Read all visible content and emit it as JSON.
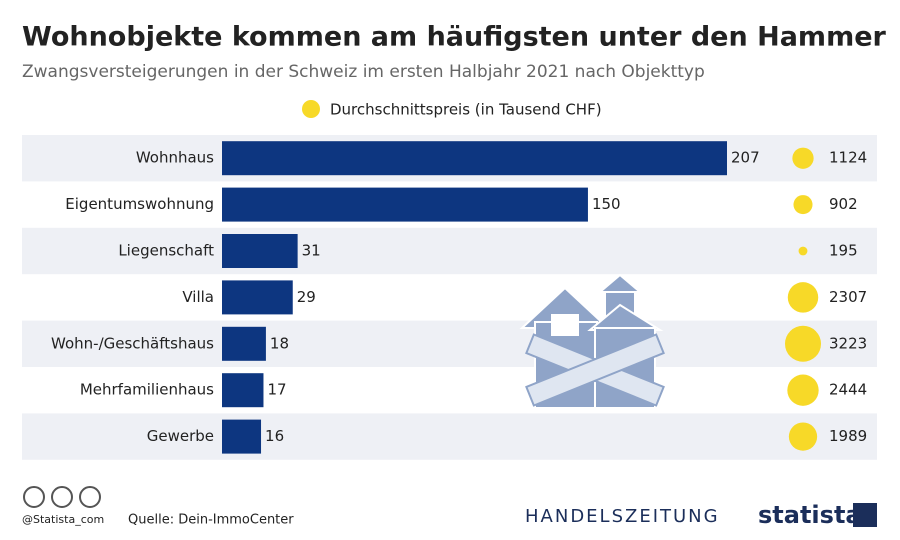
{
  "chart_data": {
    "type": "bar",
    "title": "Wohnobjekte kommen am häufigsten unter den Hammer",
    "subtitle": "Zwangsversteigerungen in der Schweiz im ersten Halbjahr 2021 nach Objekttyp",
    "categories": [
      "Wohnhaus",
      "Eigentumswohnung",
      "Liegenschaft",
      "Villa",
      "Wohn-/Geschäftshaus",
      "Mehrfamilienhaus",
      "Gewerbe"
    ],
    "values": [
      207,
      150,
      31,
      29,
      18,
      17,
      16
    ],
    "color": "#0d3680",
    "bubbles": {
      "name": "Durchschnittspreis (in Tausend CHF)",
      "color": "#f7d928",
      "values": [
        1124,
        902,
        195,
        2307,
        3223,
        2444,
        1989
      ]
    }
  },
  "footer": {
    "handle": "@Statista_com",
    "source": "Quelle: Dein-ImmoCenter",
    "partner": "HANDELSZEITUNG",
    "brand": "statista"
  }
}
